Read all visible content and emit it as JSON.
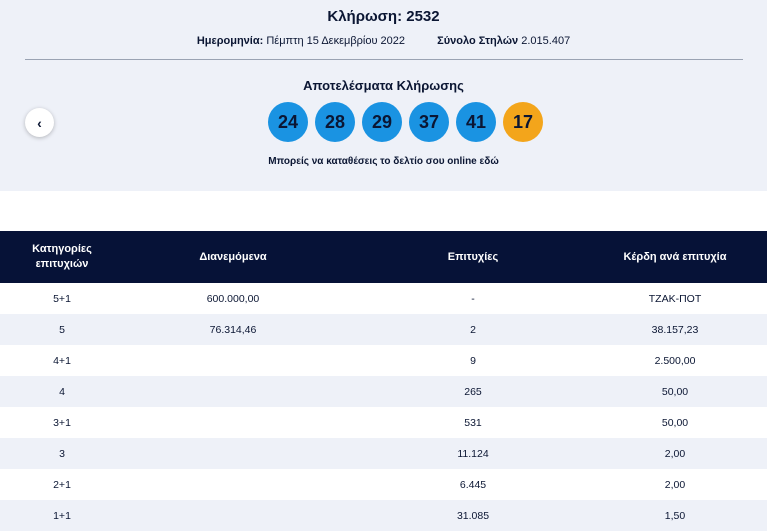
{
  "header": {
    "title": "Κλήρωση: 2532",
    "date_label": "Ημερομηνία:",
    "date_value": "Πέμπτη 15 Δεκεμβρίου 2022",
    "columns_label": "Σύνολο Στηλών",
    "columns_value": "2.015.407"
  },
  "results": {
    "title": "Αποτελέσματα Κλήρωσης",
    "numbers": [
      "24",
      "28",
      "29",
      "37",
      "41"
    ],
    "joker": "17",
    "colors": {
      "ball": "#1a93e2",
      "joker": "#f3a51b"
    }
  },
  "nav": {
    "prev_icon": "chevron-left-icon",
    "prev_glyph": "‹"
  },
  "online": {
    "text": "Μπορείς να καταθέσεις το δελτίο σου online",
    "link": "εδώ"
  },
  "table": {
    "headers": {
      "category_line1": "Κατηγορίες",
      "category_line2": "επιτυχιών",
      "distributed": "Διανεμόμενα",
      "winners": "Επιτυχίες",
      "prize": "Κέρδη ανά επιτυχία"
    },
    "rows": [
      {
        "category": "5+1",
        "distributed": "600.000,00",
        "winners": "-",
        "prize": "ΤΖΑΚ-ΠΟΤ"
      },
      {
        "category": "5",
        "distributed": "76.314,46",
        "winners": "2",
        "prize": "38.157,23"
      },
      {
        "category": "4+1",
        "distributed": "",
        "winners": "9",
        "prize": "2.500,00"
      },
      {
        "category": "4",
        "distributed": "",
        "winners": "265",
        "prize": "50,00"
      },
      {
        "category": "3+1",
        "distributed": "",
        "winners": "531",
        "prize": "50,00"
      },
      {
        "category": "3",
        "distributed": "",
        "winners": "11.124",
        "prize": "2,00"
      },
      {
        "category": "2+1",
        "distributed": "",
        "winners": "6.445",
        "prize": "2,00"
      },
      {
        "category": "1+1",
        "distributed": "",
        "winners": "31.085",
        "prize": "1,50"
      }
    ]
  }
}
